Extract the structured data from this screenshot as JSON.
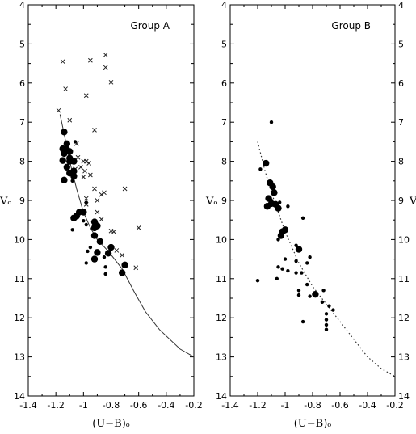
{
  "chart_data": [
    {
      "type": "scatter",
      "title": "Group A",
      "xlabel": "(U−B)ₒ",
      "ylabel": "Vₒ",
      "xlim": [
        -1.4,
        -0.2
      ],
      "ylim": [
        14,
        4
      ],
      "y_inverted": true,
      "x_ticks": [
        -1.4,
        -1.2,
        -1.0,
        -0.8,
        -0.6,
        -0.4,
        -0.2
      ],
      "x_tick_labels": [
        "-1.4",
        "-1.2",
        "-1",
        "-0.8",
        "-0.6",
        "-0.4",
        "-0.2"
      ],
      "y_ticks": [
        4,
        5,
        6,
        7,
        8,
        9,
        10,
        11,
        12,
        13,
        14
      ],
      "y_tick_labels": [
        "4",
        "5",
        "6",
        "7",
        "8",
        "9",
        "10",
        "11",
        "12",
        "13",
        "14"
      ],
      "left_axis_labels": false,
      "right_axis_labels": false,
      "series": [
        {
          "marker": "cross",
          "points": [
            [
              -1.15,
              5.45
            ],
            [
              -0.95,
              5.42
            ],
            [
              -0.84,
              5.28
            ],
            [
              -0.84,
              5.6
            ],
            [
              -0.8,
              5.98
            ],
            [
              -1.13,
              6.15
            ],
            [
              -0.98,
              6.32
            ],
            [
              -1.18,
              6.7
            ],
            [
              -1.1,
              6.95
            ],
            [
              -0.92,
              7.2
            ],
            [
              -1.05,
              7.55
            ],
            [
              -1.04,
              7.9
            ],
            [
              -1.0,
              8.0
            ],
            [
              -0.98,
              8.0
            ],
            [
              -0.96,
              8.05
            ],
            [
              -1.02,
              8.15
            ],
            [
              -1.06,
              8.2
            ],
            [
              -0.99,
              8.25
            ],
            [
              -1.0,
              8.4
            ],
            [
              -0.95,
              8.35
            ],
            [
              -0.92,
              8.7
            ],
            [
              -0.85,
              8.8
            ],
            [
              -0.7,
              8.7
            ],
            [
              -0.87,
              8.85
            ],
            [
              -0.98,
              8.95
            ],
            [
              -0.9,
              9.0
            ],
            [
              -0.98,
              9.1
            ],
            [
              -0.9,
              9.3
            ],
            [
              -0.87,
              9.48
            ],
            [
              -0.6,
              9.7
            ],
            [
              -0.8,
              9.78
            ],
            [
              -0.78,
              9.8
            ],
            [
              -0.76,
              10.28
            ],
            [
              -0.72,
              10.4
            ],
            [
              -0.62,
              10.72
            ]
          ]
        },
        {
          "marker": "large-dot",
          "points": [
            [
              -1.14,
              7.25
            ],
            [
              -1.12,
              7.55
            ],
            [
              -1.15,
              7.68
            ],
            [
              -1.12,
              7.7
            ],
            [
              -1.1,
              7.75
            ],
            [
              -1.14,
              7.8
            ],
            [
              -1.1,
              7.92
            ],
            [
              -1.15,
              7.98
            ],
            [
              -1.1,
              8.0
            ],
            [
              -1.07,
              8.0
            ],
            [
              -1.12,
              8.15
            ],
            [
              -1.07,
              8.25
            ],
            [
              -1.1,
              8.3
            ],
            [
              -1.07,
              8.38
            ],
            [
              -1.14,
              8.48
            ],
            [
              -1.03,
              9.3
            ],
            [
              -1.0,
              9.3
            ],
            [
              -1.05,
              9.4
            ],
            [
              -1.07,
              9.45
            ],
            [
              -0.92,
              9.55
            ],
            [
              -0.92,
              9.7
            ],
            [
              -0.9,
              9.65
            ],
            [
              -0.92,
              9.9
            ],
            [
              -0.88,
              10.05
            ],
            [
              -0.8,
              10.2
            ],
            [
              -0.9,
              10.33
            ],
            [
              -0.82,
              10.35
            ],
            [
              -0.92,
              10.5
            ],
            [
              -0.7,
              10.65
            ],
            [
              -0.72,
              10.85
            ]
          ]
        },
        {
          "marker": "small-dot",
          "points": [
            [
              -1.08,
              8.5
            ],
            [
              -1.06,
              7.5
            ],
            [
              -0.98,
              9.05
            ],
            [
              -1.0,
              9.52
            ],
            [
              -0.98,
              9.62
            ],
            [
              -1.08,
              9.75
            ],
            [
              -0.95,
              10.2
            ],
            [
              -0.97,
              10.3
            ],
            [
              -0.85,
              10.45
            ],
            [
              -0.84,
              10.7
            ],
            [
              -0.98,
              10.6
            ],
            [
              -0.84,
              10.88
            ]
          ]
        }
      ],
      "curve": {
        "style": "solid",
        "points": [
          [
            -1.17,
            6.8
          ],
          [
            -1.14,
            7.3
          ],
          [
            -1.1,
            8.0
          ],
          [
            -1.05,
            8.7
          ],
          [
            -1.0,
            9.3
          ],
          [
            -0.95,
            9.7
          ],
          [
            -0.9,
            10.0
          ],
          [
            -0.82,
            10.3
          ],
          [
            -0.72,
            10.75
          ],
          [
            -0.63,
            11.35
          ],
          [
            -0.55,
            11.85
          ],
          [
            -0.45,
            12.3
          ],
          [
            -0.3,
            12.8
          ],
          [
            -0.2,
            13.0
          ]
        ]
      }
    },
    {
      "type": "scatter",
      "title": "Group B",
      "xlabel": "(U−B)ₒ",
      "ylabel": "Vₒ",
      "xlim": [
        -1.4,
        -0.2
      ],
      "ylim": [
        14,
        4
      ],
      "y_inverted": true,
      "x_ticks": [
        -1.4,
        -1.2,
        -1.0,
        -0.8,
        -0.6,
        -0.4,
        -0.2
      ],
      "x_tick_labels": [
        "-1.4",
        "-1.2",
        "-1",
        "-0.8",
        "-0.6",
        "-0.4",
        "-0.2"
      ],
      "y_ticks": [
        4,
        5,
        6,
        7,
        8,
        9,
        10,
        11,
        12,
        13,
        14
      ],
      "y_tick_labels": [
        "4",
        "5",
        "6",
        "7",
        "8",
        "9",
        "10",
        "11",
        "12",
        "13",
        "14"
      ],
      "left_axis_labels": false,
      "right_axis_labels": true,
      "series": [
        {
          "marker": "large-dot",
          "points": [
            [
              -1.14,
              8.05
            ],
            [
              -1.11,
              8.55
            ],
            [
              -1.09,
              8.65
            ],
            [
              -1.08,
              8.8
            ],
            [
              -1.12,
              8.95
            ],
            [
              -1.1,
              9.08
            ],
            [
              -1.13,
              9.15
            ],
            [
              -1.07,
              9.1
            ],
            [
              -1.05,
              9.2
            ],
            [
              -1.0,
              9.75
            ],
            [
              -1.02,
              9.8
            ],
            [
              -1.03,
              9.9
            ],
            [
              -0.9,
              10.25
            ],
            [
              -0.78,
              11.4
            ]
          ]
        },
        {
          "marker": "small-dot",
          "points": [
            [
              -1.1,
              7.0
            ],
            [
              -1.18,
              8.2
            ],
            [
              -1.1,
              9.0
            ],
            [
              -1.04,
              9.05
            ],
            [
              -0.98,
              9.15
            ],
            [
              -0.87,
              9.45
            ],
            [
              -1.05,
              10.0
            ],
            [
              -0.92,
              10.15
            ],
            [
              -1.0,
              10.5
            ],
            [
              -0.92,
              10.55
            ],
            [
              -0.82,
              10.45
            ],
            [
              -0.84,
              10.6
            ],
            [
              -1.05,
              10.7
            ],
            [
              -1.02,
              10.75
            ],
            [
              -0.98,
              10.8
            ],
            [
              -0.92,
              10.85
            ],
            [
              -0.88,
              10.85
            ],
            [
              -0.84,
              11.15
            ],
            [
              -1.2,
              11.05
            ],
            [
              -1.06,
              11.0
            ],
            [
              -0.9,
              11.3
            ],
            [
              -0.9,
              11.42
            ],
            [
              -0.82,
              11.45
            ],
            [
              -0.72,
              11.3
            ],
            [
              -0.73,
              11.6
            ],
            [
              -0.68,
              11.7
            ],
            [
              -0.65,
              11.8
            ],
            [
              -0.7,
              11.9
            ],
            [
              -0.7,
              12.05
            ],
            [
              -0.7,
              12.18
            ],
            [
              -0.7,
              12.3
            ],
            [
              -0.87,
              12.1
            ]
          ]
        }
      ],
      "curve": {
        "style": "dotted",
        "points": [
          [
            -1.2,
            7.5
          ],
          [
            -1.15,
            8.2
          ],
          [
            -1.1,
            8.8
          ],
          [
            -1.05,
            9.3
          ],
          [
            -1.0,
            9.8
          ],
          [
            -0.95,
            10.2
          ],
          [
            -0.9,
            10.6
          ],
          [
            -0.8,
            11.2
          ],
          [
            -0.7,
            11.65
          ],
          [
            -0.6,
            12.1
          ],
          [
            -0.5,
            12.55
          ],
          [
            -0.4,
            13.0
          ],
          [
            -0.3,
            13.3
          ],
          [
            -0.2,
            13.5
          ]
        ]
      }
    }
  ]
}
